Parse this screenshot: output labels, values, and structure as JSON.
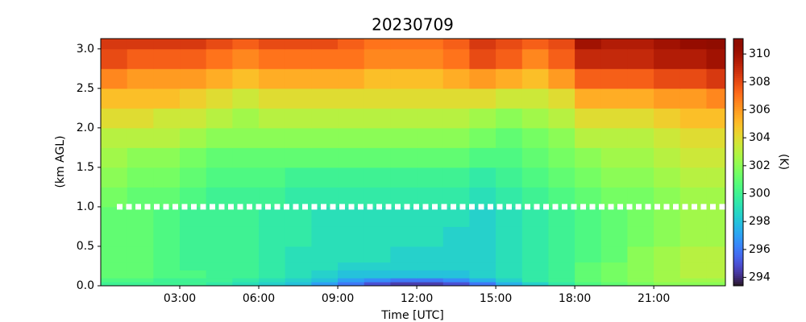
{
  "chart_data": {
    "type": "heatmap",
    "title": "20230709",
    "xlabel": "Time [UTC]",
    "ylabel": "(km AGL)",
    "colorbar_label": "(K)",
    "colormap": "turbo",
    "x_edges": [
      0,
      1,
      2,
      3,
      4,
      5,
      6,
      7,
      8,
      9,
      10,
      11,
      12,
      13,
      14,
      15,
      16,
      17,
      18,
      19,
      20,
      21,
      22,
      23,
      23.72
    ],
    "y_edges": [
      0,
      0.05,
      0.1,
      0.2,
      0.3,
      0.5,
      0.75,
      1.0,
      1.25,
      1.5,
      1.75,
      2.0,
      2.25,
      2.5,
      2.75,
      3.0,
      3.13
    ],
    "z": [
      [
        300,
        300,
        300,
        300,
        299.5,
        299,
        298.5,
        298,
        297,
        296,
        295,
        294.5,
        294.5,
        295,
        296,
        297.5,
        298.5,
        299.5,
        300.5,
        301,
        301.5,
        302,
        302,
        302
      ],
      [
        300.5,
        300.5,
        300,
        300,
        300,
        299.5,
        299,
        298.5,
        298,
        297,
        296.5,
        296,
        296,
        296.5,
        297.5,
        298.5,
        299.5,
        300,
        301,
        301.5,
        302,
        302.5,
        302.5,
        302.5
      ],
      [
        301,
        301,
        300.5,
        300.5,
        300,
        300,
        299.5,
        299,
        298.5,
        298,
        298,
        298,
        298,
        298,
        298.5,
        299,
        299.5,
        300,
        301,
        301.5,
        302,
        302.5,
        303,
        303
      ],
      [
        301,
        301,
        300.5,
        300,
        300,
        300,
        299.5,
        299,
        299,
        298.5,
        298.5,
        298.5,
        298.5,
        298.5,
        298.5,
        299,
        299.5,
        300,
        301,
        301.5,
        302,
        302.5,
        303,
        303
      ],
      [
        301,
        301,
        300.5,
        300,
        300,
        300,
        299.5,
        299,
        299,
        299,
        299,
        298.5,
        298.5,
        298.5,
        298.5,
        299,
        299.5,
        300,
        300.5,
        301,
        302,
        302.5,
        303,
        303
      ],
      [
        301,
        301,
        300.5,
        300,
        300,
        300,
        299.5,
        299.5,
        299,
        299,
        299,
        299,
        299,
        298.5,
        298.5,
        299,
        299.5,
        300,
        300.5,
        301,
        301.5,
        302,
        302.5,
        302.5
      ],
      [
        301,
        301,
        300.5,
        300,
        300,
        300,
        299.5,
        299.5,
        299,
        299,
        299,
        299,
        299,
        299,
        298.5,
        299,
        299.5,
        300,
        300.5,
        301,
        301.5,
        302,
        302.5,
        302.5
      ],
      [
        301.5,
        301,
        301,
        300.5,
        300,
        300,
        300,
        299.5,
        299.5,
        299.5,
        299.5,
        299.5,
        299.5,
        299.5,
        299,
        299.5,
        300,
        300.5,
        301,
        301.5,
        301.5,
        302,
        302.5,
        302.5
      ],
      [
        302,
        301.5,
        301.5,
        301,
        300.5,
        300.5,
        300.5,
        300,
        300,
        300,
        300,
        300,
        300,
        300,
        299.5,
        300,
        300.5,
        301,
        301.5,
        302,
        302,
        302.5,
        303,
        303
      ],
      [
        302.5,
        302,
        302,
        301.5,
        301,
        301,
        301,
        301,
        301,
        301,
        301,
        301,
        301,
        301,
        300.5,
        300.5,
        301,
        301.5,
        302,
        302.5,
        302.5,
        303,
        303.5,
        303.5
      ],
      [
        303,
        303,
        303,
        302.5,
        302,
        302,
        302,
        302,
        302,
        302,
        302,
        302,
        302,
        302,
        301.5,
        301,
        301.5,
        302,
        303,
        303,
        303,
        303.5,
        304,
        304
      ],
      [
        304,
        304,
        303.5,
        303.5,
        303,
        302.5,
        303,
        303,
        303,
        303,
        303,
        303,
        303,
        303,
        302.5,
        302,
        302.5,
        303,
        304,
        304,
        304,
        304.5,
        305,
        305
      ],
      [
        305,
        305,
        305,
        304.5,
        304,
        303.5,
        304,
        304,
        304,
        304,
        304,
        304,
        304,
        304,
        304,
        303.5,
        303.5,
        304,
        305.5,
        305.5,
        305.5,
        306,
        306,
        306.5
      ],
      [
        306.5,
        306,
        306,
        306,
        305.5,
        305,
        305.5,
        305.5,
        305.5,
        305.5,
        305,
        305,
        305,
        305.5,
        306,
        305.5,
        305,
        306,
        307.5,
        307.5,
        307.5,
        308,
        308,
        308.5
      ],
      [
        308,
        307.5,
        307.5,
        307.5,
        307,
        306.5,
        307,
        307,
        307,
        307,
        306.5,
        306.5,
        306.5,
        307,
        308,
        307.5,
        306.5,
        307.5,
        309,
        309,
        309,
        309.5,
        309.5,
        310
      ],
      [
        308.5,
        308.5,
        308.5,
        308.5,
        308,
        307.5,
        308,
        308,
        308,
        307.5,
        307,
        307,
        307,
        307.5,
        308.5,
        308,
        307.5,
        308,
        310,
        309.5,
        309.5,
        310,
        310.5,
        311
      ]
    ],
    "hline": 1,
    "xlim": [
      0,
      23.72
    ],
    "ylim": [
      0,
      3.13
    ],
    "clim": [
      293.4,
      311.1
    ],
    "xticks": [
      {
        "value": 3,
        "label": "03:00"
      },
      {
        "value": 6,
        "label": "06:00"
      },
      {
        "value": 9,
        "label": "09:00"
      },
      {
        "value": 12,
        "label": "12:00"
      },
      {
        "value": 15,
        "label": "15:00"
      },
      {
        "value": 18,
        "label": "18:00"
      },
      {
        "value": 21,
        "label": "21:00"
      }
    ],
    "yticks": [
      {
        "value": 0,
        "label": "0.0"
      },
      0.5,
      {
        "value": 1,
        "label": "1.0"
      },
      1.5,
      {
        "value": 2,
        "label": "2.0"
      },
      2.5,
      {
        "value": 3,
        "label": "3.0"
      }
    ],
    "cticks": [
      294,
      296,
      298,
      300,
      302,
      304,
      306,
      308,
      310
    ]
  }
}
